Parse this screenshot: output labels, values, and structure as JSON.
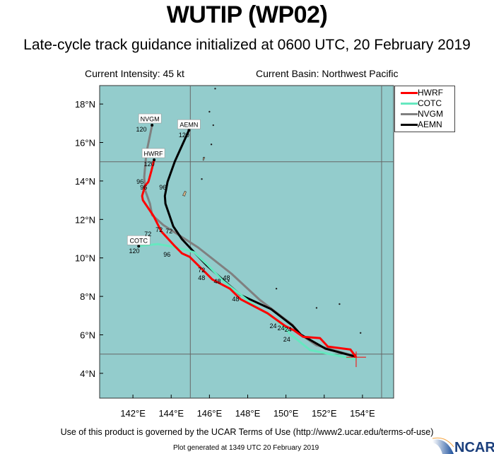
{
  "header": {
    "title": "WUTIP (WP02)",
    "subtitle": "Late-cycle track guidance initialized at 0600 UTC, 20 February 2019",
    "intensity": "Current Intensity: 45 kt",
    "basin": "Current Basin: Northwest Pacific"
  },
  "footer": {
    "terms": "Use of this product is governed by the UCAR Terms of Use (http://www2.ucar.edu/terms-of-use)",
    "generated": "Plot generated at 1349 UTC  20 February 2019",
    "logo": "NCAR"
  },
  "chart_data": {
    "type": "line",
    "xlim": [
      140.26,
      155.63
    ],
    "ylim": [
      2.71,
      18.96
    ],
    "xticks": [
      {
        "v": 142,
        "label": "142°E"
      },
      {
        "v": 144,
        "label": "144°E"
      },
      {
        "v": 146,
        "label": "146°E"
      },
      {
        "v": 148,
        "label": "148°E"
      },
      {
        "v": 150,
        "label": "150°E"
      },
      {
        "v": 152,
        "label": "152°E"
      },
      {
        "v": 154,
        "label": "154°E"
      }
    ],
    "yticks": [
      {
        "v": 4,
        "label": "4°N"
      },
      {
        "v": 6,
        "label": "6°N"
      },
      {
        "v": 8,
        "label": "8°N"
      },
      {
        "v": 10,
        "label": "10°N"
      },
      {
        "v": 12,
        "label": "12°N"
      },
      {
        "v": 14,
        "label": "14°N"
      },
      {
        "v": 16,
        "label": "16°N"
      },
      {
        "v": 18,
        "label": "18°N"
      }
    ],
    "gridlines": {
      "lon": [
        145,
        155
      ],
      "lat": [
        5,
        15
      ]
    },
    "background_color": "#93cccc",
    "initial_position": [
      153.67,
      4.84
    ],
    "legend_placement": "top-right",
    "series": [
      {
        "name": "NVGM",
        "color": "#808080",
        "points": [
          [
            153.67,
            4.84
          ],
          [
            153.56,
            4.91
          ],
          [
            151.59,
            5.46
          ],
          [
            150.78,
            6.01
          ],
          [
            150.33,
            6.53
          ],
          [
            148.63,
            7.82
          ],
          [
            147.15,
            9.18
          ],
          [
            145.41,
            10.54
          ],
          [
            143.59,
            11.71
          ],
          [
            143.0,
            12.23
          ],
          [
            142.89,
            12.82
          ],
          [
            142.63,
            13.55
          ],
          [
            142.59,
            14.21
          ],
          [
            142.7,
            15.43
          ],
          [
            143.0,
            16.9
          ]
        ],
        "tag": [
          142.89,
          17.23
        ]
      },
      {
        "name": "AEMN",
        "color": "#000000",
        "points": [
          [
            153.67,
            4.84
          ],
          [
            153.48,
            4.91
          ],
          [
            152.07,
            5.28
          ],
          [
            150.78,
            6.01
          ],
          [
            150.33,
            6.49
          ],
          [
            149.22,
            7.34
          ],
          [
            147.63,
            8.07
          ],
          [
            146.89,
            8.7
          ],
          [
            145.85,
            9.62
          ],
          [
            145.22,
            10.28
          ],
          [
            144.56,
            10.98
          ],
          [
            144.11,
            11.64
          ],
          [
            143.7,
            12.82
          ],
          [
            143.67,
            13.22
          ],
          [
            143.81,
            13.96
          ],
          [
            144.19,
            15.02
          ],
          [
            144.93,
            16.64
          ]
        ],
        "tag": [
          144.93,
          16.93
        ]
      },
      {
        "name": "COTC",
        "color": "#66e8c0",
        "points": [
          [
            153.67,
            4.84
          ],
          [
            153.63,
            4.73
          ],
          [
            151.26,
            5.21
          ],
          [
            150.26,
            6.01
          ],
          [
            149.48,
            6.79
          ],
          [
            148.11,
            7.71
          ],
          [
            146.7,
            8.81
          ],
          [
            145.85,
            9.69
          ],
          [
            145.22,
            10.28
          ],
          [
            144.74,
            10.43
          ],
          [
            143.93,
            10.61
          ],
          [
            143.3,
            10.72
          ],
          [
            142.3,
            10.61
          ]
        ],
        "tag": [
          142.3,
          10.9
        ]
      },
      {
        "name": "HWRF",
        "color": "#ff0000",
        "points": [
          [
            153.67,
            4.84
          ],
          [
            153.37,
            5.24
          ],
          [
            152.19,
            5.39
          ],
          [
            151.78,
            5.83
          ],
          [
            150.89,
            5.9
          ],
          [
            150.41,
            6.24
          ],
          [
            149.96,
            6.46
          ],
          [
            149.04,
            7.12
          ],
          [
            147.63,
            7.85
          ],
          [
            147.07,
            8.4
          ],
          [
            146.15,
            8.88
          ],
          [
            145.78,
            9.25
          ],
          [
            144.96,
            10.06
          ],
          [
            144.56,
            10.24
          ],
          [
            144.19,
            10.61
          ],
          [
            143.48,
            11.38
          ],
          [
            143.07,
            12.19
          ],
          [
            142.52,
            13.0
          ],
          [
            142.48,
            13.22
          ],
          [
            142.63,
            13.74
          ],
          [
            142.81,
            13.96
          ],
          [
            142.96,
            14.51
          ],
          [
            143.11,
            15.1
          ]
        ],
        "tag": [
          143.07,
          15.43
        ]
      }
    ],
    "hour_labels": [
      {
        "t": "120",
        "p": [
          142.44,
          16.68
        ]
      },
      {
        "t": "120",
        "p": [
          144.67,
          16.38
        ]
      },
      {
        "t": "120",
        "p": [
          142.85,
          14.88
        ]
      },
      {
        "t": "120",
        "p": [
          142.07,
          10.35
        ]
      },
      {
        "t": "96",
        "p": [
          142.37,
          13.96
        ]
      },
      {
        "t": "96",
        "p": [
          142.56,
          13.66
        ]
      },
      {
        "t": "96",
        "p": [
          143.56,
          13.66
        ]
      },
      {
        "t": "96",
        "p": [
          143.78,
          10.17
        ]
      },
      {
        "t": "72",
        "p": [
          142.78,
          11.24
        ]
      },
      {
        "t": "72",
        "p": [
          143.37,
          11.46
        ]
      },
      {
        "t": "72",
        "p": [
          143.89,
          11.38
        ]
      },
      {
        "t": "72",
        "p": [
          145.59,
          9.36
        ]
      },
      {
        "t": "48",
        "p": [
          145.59,
          8.96
        ]
      },
      {
        "t": "48",
        "p": [
          146.41,
          8.77
        ]
      },
      {
        "t": "48",
        "p": [
          146.89,
          8.96
        ]
      },
      {
        "t": "48",
        "p": [
          147.37,
          7.85
        ]
      },
      {
        "t": "24",
        "p": [
          149.33,
          6.46
        ]
      },
      {
        "t": "24",
        "p": [
          149.74,
          6.35
        ]
      },
      {
        "t": "24",
        "p": [
          150.11,
          6.27
        ]
      },
      {
        "t": "24",
        "p": [
          150.04,
          5.76
        ]
      }
    ]
  },
  "legend": {
    "items": [
      {
        "name": "HWRF",
        "color": "#ff0000"
      },
      {
        "name": "COTC",
        "color": "#66e8c0"
      },
      {
        "name": "NVGM",
        "color": "#808080"
      },
      {
        "name": "AEMN",
        "color": "#000000"
      }
    ]
  }
}
